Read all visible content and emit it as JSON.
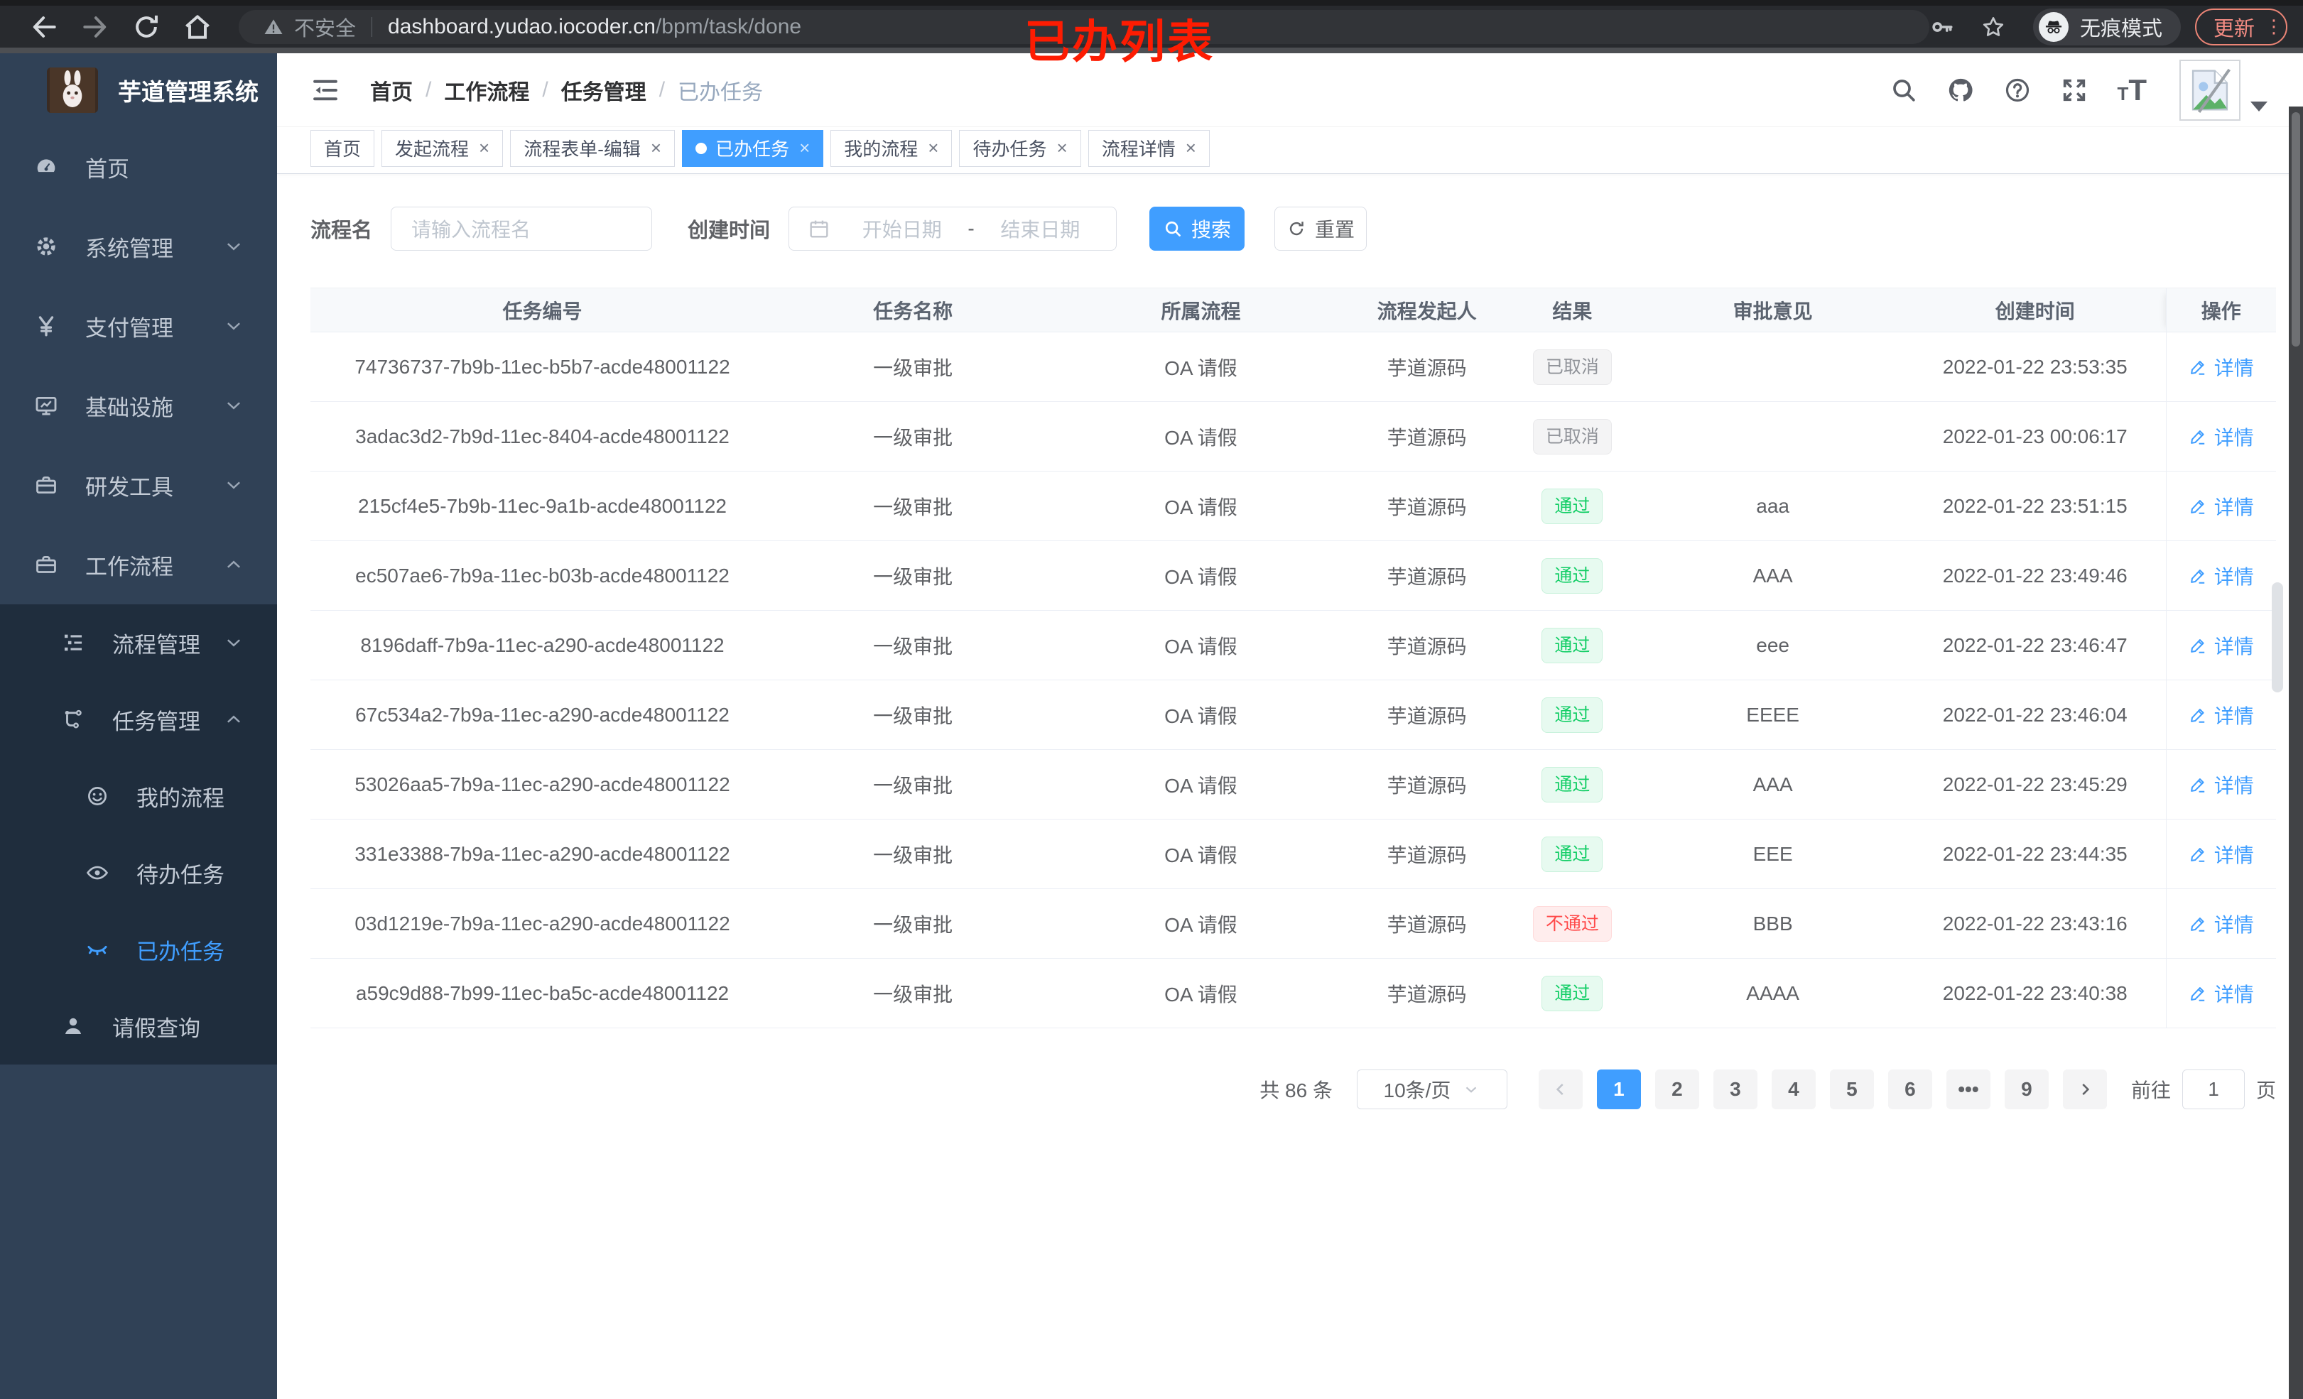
{
  "browser": {
    "security_label": "不安全",
    "url_host": "dashboard.yudao.iocoder.cn",
    "url_path": "/bpm/task/done",
    "incognito_label": "无痕模式",
    "update_label": "更新",
    "update_dots": "⋮"
  },
  "annotation": {
    "text": "已办列表"
  },
  "sidebar": {
    "title": "芋道管理系统",
    "items": [
      {
        "key": "home",
        "label": "首页",
        "icon": "gauge",
        "depth": 0,
        "sub": false,
        "active": false,
        "chevron": ""
      },
      {
        "key": "system-mgmt",
        "label": "系统管理",
        "icon": "gear",
        "depth": 0,
        "sub": false,
        "active": false,
        "chevron": "down"
      },
      {
        "key": "payment-mgmt",
        "label": "支付管理",
        "icon": "yen",
        "depth": 0,
        "sub": false,
        "active": false,
        "chevron": "down"
      },
      {
        "key": "infrastructure",
        "label": "基础设施",
        "icon": "monitor",
        "depth": 0,
        "sub": false,
        "active": false,
        "chevron": "down"
      },
      {
        "key": "dev-tools",
        "label": "研发工具",
        "icon": "briefcase",
        "depth": 0,
        "sub": false,
        "active": false,
        "chevron": "down"
      },
      {
        "key": "workflow",
        "label": "工作流程",
        "icon": "briefcase",
        "depth": 0,
        "sub": false,
        "active": false,
        "chevron": "up"
      },
      {
        "key": "process-mgmt",
        "label": "流程管理",
        "icon": "tree",
        "depth": 1,
        "sub": true,
        "active": false,
        "chevron": "down"
      },
      {
        "key": "task-mgmt",
        "label": "任务管理",
        "icon": "flow",
        "depth": 1,
        "sub": true,
        "active": false,
        "chevron": "up"
      },
      {
        "key": "my-process",
        "label": "我的流程",
        "icon": "face",
        "depth": 2,
        "sub": true,
        "active": false,
        "chevron": ""
      },
      {
        "key": "todo-tasks",
        "label": "待办任务",
        "icon": "eye",
        "depth": 2,
        "sub": true,
        "active": false,
        "chevron": ""
      },
      {
        "key": "done-tasks",
        "label": "已办任务",
        "icon": "eyeclosed",
        "depth": 2,
        "sub": true,
        "active": true,
        "chevron": ""
      },
      {
        "key": "leave-query",
        "label": "请假查询",
        "icon": "user",
        "depth": 1,
        "sub": true,
        "active": false,
        "chevron": ""
      }
    ]
  },
  "breadcrumb": {
    "items": [
      "首页",
      "工作流程",
      "任务管理",
      "已办任务"
    ]
  },
  "tabs": [
    {
      "key": "home",
      "label": "首页",
      "closable": false,
      "active": false
    },
    {
      "key": "initiate-process",
      "label": "发起流程",
      "closable": true,
      "active": false
    },
    {
      "key": "process-form-edit",
      "label": "流程表单-编辑",
      "closable": true,
      "active": false
    },
    {
      "key": "done-tasks",
      "label": "已办任务",
      "closable": true,
      "active": true
    },
    {
      "key": "my-process",
      "label": "我的流程",
      "closable": true,
      "active": false
    },
    {
      "key": "todo-tasks",
      "label": "待办任务",
      "closable": true,
      "active": false
    },
    {
      "key": "process-detail",
      "label": "流程详情",
      "closable": true,
      "active": false
    }
  ],
  "search": {
    "name_label": "流程名",
    "name_placeholder": "请输入流程名",
    "time_label": "创建时间",
    "start_placeholder": "开始日期",
    "range_separator": "-",
    "end_placeholder": "结束日期",
    "search_label": "搜索",
    "reset_label": "重置"
  },
  "table": {
    "columns": [
      "任务编号",
      "任务名称",
      "所属流程",
      "流程发起人",
      "结果",
      "审批意见",
      "创建时间",
      "操作"
    ],
    "detail_label": "详情",
    "rows": [
      {
        "id": "74736737-7b9b-11ec-b5b7-acde48001122",
        "name": "一级审批",
        "process": "OA 请假",
        "starter": "芋道源码",
        "result": {
          "label": "已取消",
          "type": "info"
        },
        "opinion": "",
        "created": "2022-01-22 23:53:35"
      },
      {
        "id": "3adac3d2-7b9d-11ec-8404-acde48001122",
        "name": "一级审批",
        "process": "OA 请假",
        "starter": "芋道源码",
        "result": {
          "label": "已取消",
          "type": "info"
        },
        "opinion": "",
        "created": "2022-01-23 00:06:17"
      },
      {
        "id": "215cf4e5-7b9b-11ec-9a1b-acde48001122",
        "name": "一级审批",
        "process": "OA 请假",
        "starter": "芋道源码",
        "result": {
          "label": "通过",
          "type": "success"
        },
        "opinion": "aaa",
        "created": "2022-01-22 23:51:15"
      },
      {
        "id": "ec507ae6-7b9a-11ec-b03b-acde48001122",
        "name": "一级审批",
        "process": "OA 请假",
        "starter": "芋道源码",
        "result": {
          "label": "通过",
          "type": "success"
        },
        "opinion": "AAA",
        "created": "2022-01-22 23:49:46"
      },
      {
        "id": "8196daff-7b9a-11ec-a290-acde48001122",
        "name": "一级审批",
        "process": "OA 请假",
        "starter": "芋道源码",
        "result": {
          "label": "通过",
          "type": "success"
        },
        "opinion": "eee",
        "created": "2022-01-22 23:46:47"
      },
      {
        "id": "67c534a2-7b9a-11ec-a290-acde48001122",
        "name": "一级审批",
        "process": "OA 请假",
        "starter": "芋道源码",
        "result": {
          "label": "通过",
          "type": "success"
        },
        "opinion": "EEEE",
        "created": "2022-01-22 23:46:04"
      },
      {
        "id": "53026aa5-7b9a-11ec-a290-acde48001122",
        "name": "一级审批",
        "process": "OA 请假",
        "starter": "芋道源码",
        "result": {
          "label": "通过",
          "type": "success"
        },
        "opinion": "AAA",
        "created": "2022-01-22 23:45:29"
      },
      {
        "id": "331e3388-7b9a-11ec-a290-acde48001122",
        "name": "一级审批",
        "process": "OA 请假",
        "starter": "芋道源码",
        "result": {
          "label": "通过",
          "type": "success"
        },
        "opinion": "EEE",
        "created": "2022-01-22 23:44:35"
      },
      {
        "id": "03d1219e-7b9a-11ec-a290-acde48001122",
        "name": "一级审批",
        "process": "OA 请假",
        "starter": "芋道源码",
        "result": {
          "label": "不通过",
          "type": "danger"
        },
        "opinion": "BBB",
        "created": "2022-01-22 23:43:16"
      },
      {
        "id": "a59c9d88-7b99-11ec-ba5c-acde48001122",
        "name": "一级审批",
        "process": "OA 请假",
        "starter": "芋道源码",
        "result": {
          "label": "通过",
          "type": "success"
        },
        "opinion": "AAAA",
        "created": "2022-01-22 23:40:38"
      }
    ]
  },
  "pagination": {
    "total_label": "共 86 条",
    "page_size": "10条/页",
    "pages": [
      "1",
      "2",
      "3",
      "4",
      "5",
      "6",
      "•••",
      "9"
    ],
    "active_page": "1",
    "goto_label": "前往",
    "goto_value": "1",
    "page_unit": "页"
  },
  "colors": {
    "accent": "#409eff",
    "success": "#13ce66",
    "danger": "#ff4949",
    "info": "#909399",
    "sidebar": "#304156",
    "submenu": "#1f2d3d"
  }
}
